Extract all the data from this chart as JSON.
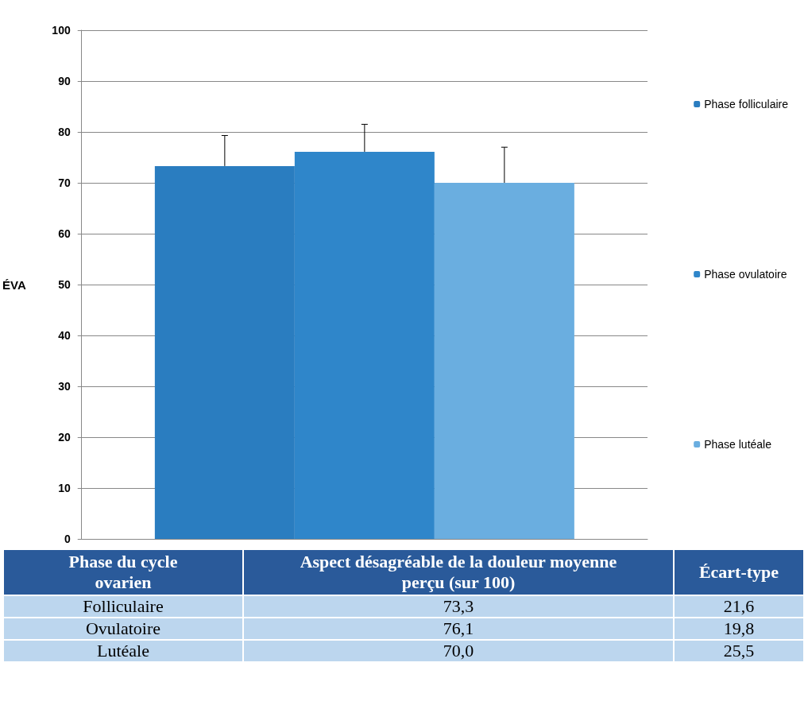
{
  "chart_data": {
    "type": "bar",
    "ylabel": "ÉVA",
    "categories": [
      null
    ],
    "series": [
      {
        "name": "Phase folliculaire",
        "color": "#2a7dc0",
        "values": [
          73.3
        ],
        "errors": [
          [
            73.3,
            79.3
          ]
        ]
      },
      {
        "name": "Phase ovulatoire",
        "color": "#2f86ca",
        "values": [
          76.1
        ],
        "errors": [
          [
            76.1,
            81.5
          ]
        ]
      },
      {
        "name": "Phase lutéale",
        "color": "#6aaee0",
        "values": [
          70.0
        ],
        "errors": [
          [
            70.0,
            77.0
          ]
        ]
      }
    ],
    "ylim": [
      0,
      100
    ],
    "yticks": [
      0,
      10,
      20,
      30,
      40,
      50,
      60,
      70,
      80,
      90,
      100
    ],
    "grid": "y",
    "legend": "right",
    "annotations": [
      "Phase du cycle ovarien",
      "Aspect désagréable de la douleur moyenne perçu (sur 100)",
      "Écart-type",
      "Folliculaire",
      "73,3",
      "21,6",
      "Ovulatoire",
      "76,1",
      "19,8",
      "Lutéale",
      "70,0",
      "25,5"
    ]
  }
}
